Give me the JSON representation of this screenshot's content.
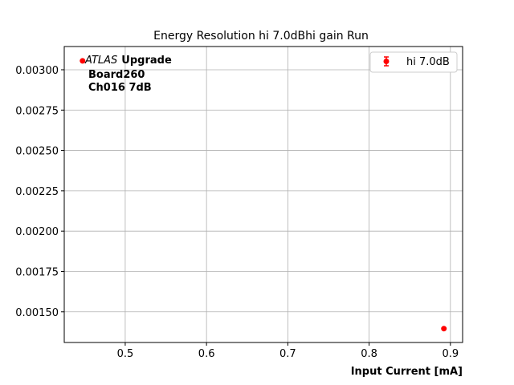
{
  "chart_data": {
    "type": "scatter",
    "title": "Energy Resolution hi 7.0dBhi gain Run",
    "xlabel": "Input Current [mA]",
    "ylabel": "",
    "xlim": [
      0.425,
      0.915
    ],
    "ylim": [
      0.00131,
      0.003144
    ],
    "xticks": [
      0.5,
      0.6,
      0.7,
      0.8,
      0.9
    ],
    "xtick_labels": [
      "0.5",
      "0.6",
      "0.7",
      "0.8",
      "0.9"
    ],
    "yticks": [
      0.0015,
      0.00175,
      0.002,
      0.00225,
      0.0025,
      0.00275,
      0.003
    ],
    "ytick_labels": [
      "0.00150",
      "0.00175",
      "0.00200",
      "0.00225",
      "0.00250",
      "0.00275",
      "0.00300"
    ],
    "grid": true,
    "legend_position": "top-right",
    "series": [
      {
        "name": "hi 7.0dB",
        "color": "#ff0000",
        "x": [
          0.4475,
          0.892
        ],
        "y": [
          0.003055,
          0.001396
        ]
      }
    ],
    "annotation": {
      "italic": "ATLAS",
      "bold": "Upgrade",
      "line2": "Board260",
      "line3": "Ch016 7dB"
    }
  }
}
